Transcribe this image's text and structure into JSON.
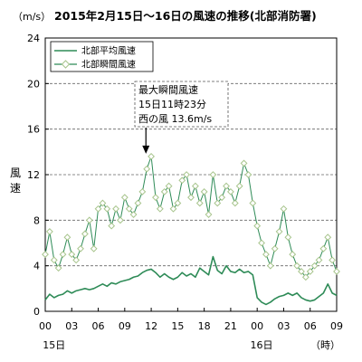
{
  "chart_data": {
    "type": "line",
    "title": "2015年2月15日～16日の風速の推移(北部消防署)",
    "unit": "（m/s）",
    "ylabel": [
      "風",
      "速"
    ],
    "ylim": [
      0,
      24
    ],
    "yticks": [
      0,
      4,
      8,
      12,
      16,
      20,
      24
    ],
    "xlim": [
      0,
      33
    ],
    "xticks": [
      {
        "hour": 0,
        "label": "00"
      },
      {
        "hour": 3,
        "label": "03"
      },
      {
        "hour": 6,
        "label": "06"
      },
      {
        "hour": 9,
        "label": "09"
      },
      {
        "hour": 12,
        "label": "12"
      },
      {
        "hour": 15,
        "label": "15"
      },
      {
        "hour": 18,
        "label": "18"
      },
      {
        "hour": 21,
        "label": "21"
      },
      {
        "hour": 24,
        "label": "00"
      },
      {
        "hour": 27,
        "label": "03"
      },
      {
        "hour": 30,
        "label": "06"
      },
      {
        "hour": 33,
        "label": "09"
      }
    ],
    "day_labels": [
      {
        "hour": 1,
        "label": "15日"
      },
      {
        "hour": 24.5,
        "label": "16日"
      }
    ],
    "xunit": "（時）",
    "grid": "horizontal dashed",
    "legend": "top-left",
    "series": [
      {
        "name": "北部平均風速",
        "color": "#2e8b57",
        "marker": "none",
        "points": [
          [
            0,
            1.0
          ],
          [
            0.5,
            1.5
          ],
          [
            1,
            1.2
          ],
          [
            1.5,
            1.4
          ],
          [
            2,
            1.5
          ],
          [
            2.5,
            1.8
          ],
          [
            3,
            1.6
          ],
          [
            3.5,
            1.8
          ],
          [
            4,
            1.9
          ],
          [
            4.5,
            2.0
          ],
          [
            5,
            1.9
          ],
          [
            5.5,
            2.0
          ],
          [
            6,
            2.2
          ],
          [
            6.5,
            2.4
          ],
          [
            7,
            2.2
          ],
          [
            7.5,
            2.5
          ],
          [
            8,
            2.4
          ],
          [
            8.5,
            2.6
          ],
          [
            9,
            2.7
          ],
          [
            9.5,
            2.8
          ],
          [
            10,
            3.0
          ],
          [
            10.5,
            3.1
          ],
          [
            11,
            3.4
          ],
          [
            11.5,
            3.6
          ],
          [
            12,
            3.7
          ],
          [
            12.5,
            3.4
          ],
          [
            13,
            3.0
          ],
          [
            13.5,
            3.3
          ],
          [
            14,
            3.0
          ],
          [
            14.5,
            2.8
          ],
          [
            15,
            3.0
          ],
          [
            15.5,
            3.4
          ],
          [
            16,
            3.1
          ],
          [
            16.5,
            3.3
          ],
          [
            17,
            3.0
          ],
          [
            17.5,
            3.8
          ],
          [
            18,
            3.5
          ],
          [
            18.5,
            3.2
          ],
          [
            19,
            4.8
          ],
          [
            19.5,
            3.6
          ],
          [
            20,
            3.3
          ],
          [
            20.5,
            4.0
          ],
          [
            21,
            3.5
          ],
          [
            21.5,
            3.4
          ],
          [
            22,
            3.7
          ],
          [
            22.5,
            3.4
          ],
          [
            23,
            3.5
          ],
          [
            23.5,
            3.2
          ],
          [
            24,
            1.2
          ],
          [
            24.5,
            0.8
          ],
          [
            25,
            0.6
          ],
          [
            25.5,
            0.8
          ],
          [
            26,
            1.1
          ],
          [
            26.5,
            1.3
          ],
          [
            27,
            1.4
          ],
          [
            27.5,
            1.6
          ],
          [
            28,
            1.4
          ],
          [
            28.5,
            1.6
          ],
          [
            29,
            1.2
          ],
          [
            29.5,
            1.0
          ],
          [
            30,
            0.9
          ],
          [
            30.5,
            1.0
          ],
          [
            31,
            1.3
          ],
          [
            31.5,
            1.6
          ],
          [
            32,
            2.4
          ],
          [
            32.5,
            1.6
          ],
          [
            33,
            1.4
          ]
        ]
      },
      {
        "name": "北部瞬間風速",
        "color": "#2e8b57",
        "marker": "diamond",
        "points": [
          [
            0,
            5.0
          ],
          [
            0.5,
            7.0
          ],
          [
            1,
            4.5
          ],
          [
            1.5,
            3.8
          ],
          [
            2,
            5.0
          ],
          [
            2.5,
            6.5
          ],
          [
            3,
            5.0
          ],
          [
            3.5,
            4.5
          ],
          [
            4,
            5.5
          ],
          [
            4.5,
            6.8
          ],
          [
            5,
            8.0
          ],
          [
            5.5,
            5.5
          ],
          [
            6,
            9.0
          ],
          [
            6.5,
            9.5
          ],
          [
            7,
            9.0
          ],
          [
            7.5,
            7.5
          ],
          [
            8,
            9.0
          ],
          [
            8.5,
            8.0
          ],
          [
            9,
            10.0
          ],
          [
            9.5,
            9.0
          ],
          [
            10,
            8.5
          ],
          [
            10.5,
            9.5
          ],
          [
            11,
            10.5
          ],
          [
            11.5,
            12.5
          ],
          [
            12,
            13.6
          ],
          [
            12.5,
            10.0
          ],
          [
            13,
            9.0
          ],
          [
            13.5,
            10.5
          ],
          [
            14,
            11.0
          ],
          [
            14.5,
            9.0
          ],
          [
            15,
            9.5
          ],
          [
            15.5,
            11.5
          ],
          [
            16,
            12.0
          ],
          [
            16.5,
            10.0
          ],
          [
            17,
            11.0
          ],
          [
            17.5,
            9.5
          ],
          [
            18,
            10.5
          ],
          [
            18.5,
            8.5
          ],
          [
            19,
            12.0
          ],
          [
            19.5,
            9.5
          ],
          [
            20,
            10.0
          ],
          [
            20.5,
            11.0
          ],
          [
            21,
            10.5
          ],
          [
            21.5,
            9.5
          ],
          [
            22,
            11.0
          ],
          [
            22.5,
            13.0
          ],
          [
            23,
            12.0
          ],
          [
            23.5,
            9.5
          ],
          [
            24,
            7.5
          ],
          [
            24.5,
            6.0
          ],
          [
            25,
            5.0
          ],
          [
            25.5,
            4.0
          ],
          [
            26,
            5.5
          ],
          [
            26.5,
            7.0
          ],
          [
            27,
            9.0
          ],
          [
            27.5,
            6.5
          ],
          [
            28,
            5.0
          ],
          [
            28.5,
            4.0
          ],
          [
            29,
            3.5
          ],
          [
            29.5,
            3.0
          ],
          [
            30,
            3.5
          ],
          [
            30.5,
            4.0
          ],
          [
            31,
            4.5
          ],
          [
            31.5,
            5.5
          ],
          [
            32,
            6.5
          ],
          [
            32.5,
            4.5
          ],
          [
            33,
            3.5
          ]
        ]
      }
    ],
    "annotation": {
      "lines": [
        "最大瞬間風速",
        "15日11時23分",
        "西の風 13.6m/s"
      ],
      "arrow_to": [
        11.4,
        13.6
      ]
    }
  }
}
